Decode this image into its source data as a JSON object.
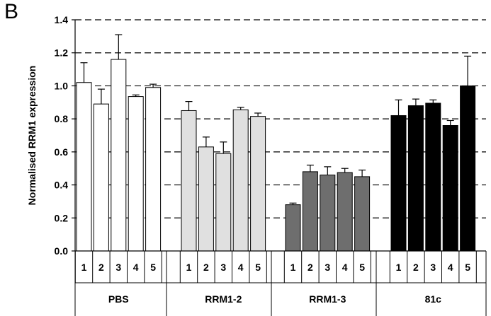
{
  "panel_label": "B",
  "chart_data": {
    "type": "bar",
    "ylabel": "Normalised RRM1 expression",
    "ylim": [
      0,
      1.4
    ],
    "yticks": [
      "0.0",
      "0.2",
      "0.4",
      "0.6",
      "0.8",
      "1.0",
      "1.2",
      "1.4"
    ],
    "grid": "horizontal-dashed",
    "groups": [
      {
        "name": "PBS",
        "color": "#ffffff",
        "categories": [
          "1",
          "2",
          "3",
          "4",
          "5"
        ],
        "values": [
          1.02,
          0.89,
          1.16,
          0.935,
          0.99
        ],
        "errors": [
          0.12,
          0.09,
          0.15,
          0.01,
          0.02
        ]
      },
      {
        "name": "RRM1-2",
        "color": "#e0e0e0",
        "categories": [
          "1",
          "2",
          "3",
          "4",
          "5"
        ],
        "values": [
          0.85,
          0.63,
          0.59,
          0.855,
          0.815
        ],
        "errors": [
          0.055,
          0.06,
          0.07,
          0.015,
          0.02
        ]
      },
      {
        "name": "RRM1-3",
        "color": "#6e6e6e",
        "categories": [
          "1",
          "2",
          "3",
          "4",
          "5"
        ],
        "values": [
          0.28,
          0.48,
          0.46,
          0.475,
          0.45
        ],
        "errors": [
          0.01,
          0.04,
          0.05,
          0.025,
          0.04
        ]
      },
      {
        "name": "81c",
        "color": "#000000",
        "categories": [
          "1",
          "2",
          "3",
          "4",
          "5"
        ],
        "values": [
          0.82,
          0.88,
          0.895,
          0.76,
          1.0
        ],
        "errors": [
          0.095,
          0.04,
          0.02,
          0.03,
          0.18
        ]
      }
    ]
  }
}
